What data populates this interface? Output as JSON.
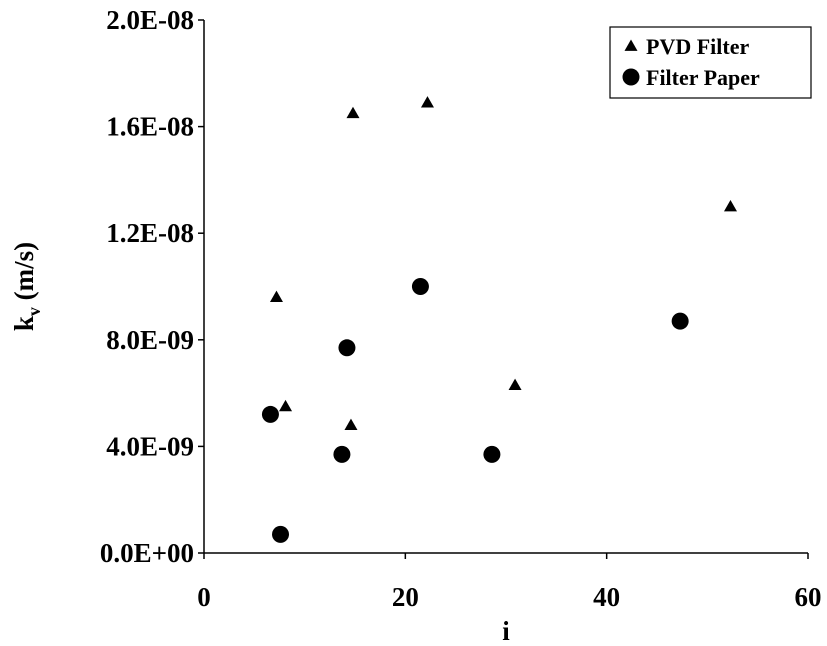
{
  "chart_data": {
    "type": "scatter",
    "title": "",
    "xlabel": "i",
    "ylabel_main": "k",
    "ylabel_sub": "v",
    "ylabel_unit": " (m/s)",
    "xlim": [
      0,
      60
    ],
    "ylim": [
      0,
      2e-08
    ],
    "x_ticks": [
      0,
      20,
      40,
      60
    ],
    "x_tick_labels": [
      "0",
      "20",
      "40",
      "60"
    ],
    "y_ticks": [
      0,
      4e-09,
      8e-09,
      1.2e-08,
      1.6e-08,
      2e-08
    ],
    "y_tick_labels": [
      "0.0E+00",
      "4.0E-09",
      "8.0E-09",
      "1.2E-08",
      "1.6E-08",
      "2.0E-08"
    ],
    "grid": false,
    "legend_position": "top-right",
    "series": [
      {
        "name": "PVD Filter",
        "marker": "triangle",
        "color": "#000000",
        "points": [
          {
            "x": 7.2,
            "y": 9.6e-09
          },
          {
            "x": 8.1,
            "y": 5.5e-09
          },
          {
            "x": 14.6,
            "y": 4.8e-09
          },
          {
            "x": 14.8,
            "y": 1.65e-08
          },
          {
            "x": 22.2,
            "y": 1.69e-08
          },
          {
            "x": 30.9,
            "y": 6.3e-09
          },
          {
            "x": 52.3,
            "y": 1.3e-08
          }
        ]
      },
      {
        "name": "Filter Paper",
        "marker": "circle",
        "color": "#000000",
        "points": [
          {
            "x": 6.6,
            "y": 5.2e-09
          },
          {
            "x": 7.6,
            "y": 7e-10
          },
          {
            "x": 13.7,
            "y": 3.7e-09
          },
          {
            "x": 14.2,
            "y": 7.7e-09
          },
          {
            "x": 21.5,
            "y": 1e-08
          },
          {
            "x": 28.6,
            "y": 3.7e-09
          },
          {
            "x": 47.3,
            "y": 8.7e-09
          }
        ]
      }
    ]
  }
}
